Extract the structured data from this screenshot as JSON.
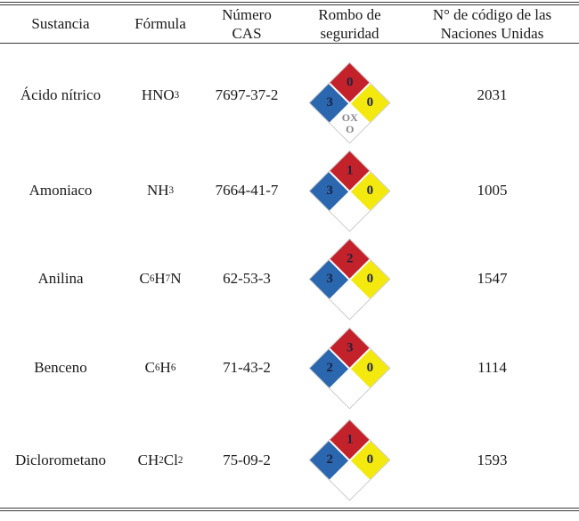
{
  "colors": {
    "text": "#1a1a1a",
    "rule": "#3a3a3a",
    "diamond_red": "#c4222a",
    "diamond_blue": "#2b67ae",
    "diamond_yellow": "#f3e90f",
    "diamond_white": "#ffffff",
    "diamond_digit": "#1c2240",
    "special_text": "#84848c"
  },
  "header": {
    "substance": "Sustancia",
    "formula": "Fórmula",
    "cas": "Número\nCAS",
    "diamond": "Rombo de\nseguridad",
    "un": "N° de código de las\nNaciones Unidas"
  },
  "rows": [
    {
      "substance": "Ácido nítrico",
      "formula": [
        {
          "text": "HNO"
        },
        {
          "text": "3",
          "sub": true
        }
      ],
      "cas": "7697-37-2",
      "diamond": {
        "fire_red": "0",
        "health_blue": "3",
        "reactivity_yellow": "0",
        "special_white": "OX\nO"
      },
      "un_code": "2031"
    },
    {
      "substance": "Amoniaco",
      "formula": [
        {
          "text": "NH"
        },
        {
          "text": "3",
          "sub": true
        }
      ],
      "cas": "7664-41-7",
      "diamond": {
        "fire_red": "1",
        "health_blue": "3",
        "reactivity_yellow": "0",
        "special_white": ""
      },
      "un_code": "1005"
    },
    {
      "substance": "Anilina",
      "formula": [
        {
          "text": "C"
        },
        {
          "text": "6",
          "sub": true
        },
        {
          "text": " H"
        },
        {
          "text": "7",
          "sub": true
        },
        {
          "text": "N"
        }
      ],
      "cas": "62-53-3",
      "diamond": {
        "fire_red": "2",
        "health_blue": "3",
        "reactivity_yellow": "0",
        "special_white": ""
      },
      "un_code": "1547"
    },
    {
      "substance": "Benceno",
      "formula": [
        {
          "text": "C"
        },
        {
          "text": "6",
          "sub": true
        },
        {
          "text": "H"
        },
        {
          "text": "6",
          "sub": true
        }
      ],
      "cas": "71-43-2",
      "diamond": {
        "fire_red": "3",
        "health_blue": "2",
        "reactivity_yellow": "0",
        "special_white": ""
      },
      "un_code": "1114"
    },
    {
      "substance": "Diclorometano",
      "formula": [
        {
          "text": "CH"
        },
        {
          "text": "2",
          "sub": true
        },
        {
          "text": "Cl"
        },
        {
          "text": "2",
          "sub": true
        }
      ],
      "cas": "75-09-2",
      "diamond": {
        "fire_red": "1",
        "health_blue": "2",
        "reactivity_yellow": "0",
        "special_white": ""
      },
      "un_code": "1593"
    }
  ]
}
